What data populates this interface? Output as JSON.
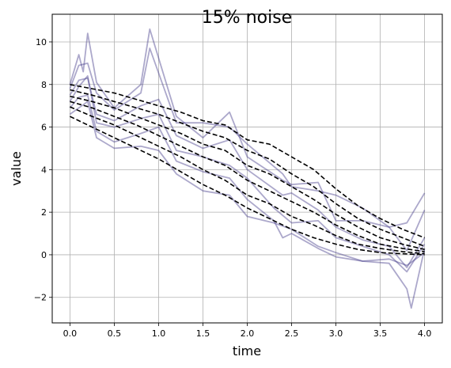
{
  "chart_data": {
    "type": "line",
    "title": "15% noise",
    "xlabel": "time",
    "ylabel": "value",
    "xlim": [
      -0.2,
      4.2
    ],
    "ylim": [
      -3.2,
      11.3
    ],
    "xticks": [
      0.0,
      0.5,
      1.0,
      1.5,
      2.0,
      2.5,
      3.0,
      3.5,
      4.0
    ],
    "xtick_labels": [
      "0.0",
      "0.5",
      "1.0",
      "1.5",
      "2.0",
      "2.5",
      "3.0",
      "3.5",
      "4.0"
    ],
    "yticks": [
      -2,
      0,
      2,
      4,
      6,
      8,
      10
    ],
    "ytick_labels": [
      "−2",
      "0",
      "2",
      "4",
      "6",
      "8",
      "10"
    ],
    "grid": true,
    "colors": {
      "noisy": "#483d8b",
      "smooth": "#000000",
      "grid": "#b0b0b0"
    },
    "noisy_series": [
      {
        "x": [
          0.0,
          0.1,
          0.15,
          0.2,
          0.3,
          0.5,
          0.8,
          0.9,
          1.2,
          1.5,
          1.8,
          2.0,
          2.4,
          2.5,
          2.8,
          3.0,
          3.3,
          3.6,
          3.8,
          4.0
        ],
        "y": [
          8.0,
          9.4,
          8.6,
          10.4,
          8.1,
          6.9,
          8.0,
          10.6,
          6.5,
          5.5,
          6.7,
          4.6,
          3.5,
          3.3,
          3.4,
          1.6,
          1.6,
          1.3,
          1.5,
          2.9
        ]
      },
      {
        "x": [
          0.0,
          0.1,
          0.2,
          0.3,
          0.5,
          0.8,
          0.9,
          1.2,
          1.5,
          1.8,
          2.0,
          2.4,
          2.5,
          2.8,
          3.0,
          3.3,
          3.6,
          3.8,
          4.0
        ],
        "y": [
          7.8,
          8.9,
          9.0,
          7.6,
          6.8,
          7.6,
          9.7,
          6.2,
          6.2,
          6.0,
          5.2,
          3.8,
          3.2,
          3.0,
          2.8,
          2.2,
          1.3,
          0.2,
          2.1
        ]
      },
      {
        "x": [
          0.0,
          0.1,
          0.2,
          0.3,
          0.5,
          0.8,
          1.0,
          1.2,
          1.5,
          1.8,
          2.0,
          2.4,
          2.5,
          2.8,
          3.0,
          3.3,
          3.6,
          3.8,
          4.0
        ],
        "y": [
          7.5,
          8.2,
          8.3,
          6.6,
          6.3,
          7.0,
          7.3,
          5.6,
          5.0,
          5.4,
          4.0,
          2.8,
          2.9,
          2.1,
          1.3,
          0.7,
          0.4,
          -0.6,
          0.8
        ]
      },
      {
        "x": [
          0.0,
          0.1,
          0.2,
          0.3,
          0.5,
          0.8,
          1.0,
          1.2,
          1.5,
          1.8,
          2.0,
          2.3,
          2.5,
          2.8,
          3.0,
          3.3,
          3.6,
          3.8,
          4.0
        ],
        "y": [
          7.2,
          7.9,
          8.4,
          6.2,
          6.0,
          6.4,
          6.6,
          4.9,
          4.6,
          4.2,
          3.6,
          2.2,
          1.5,
          1.6,
          0.8,
          0.4,
          0.0,
          -0.8,
          0.5
        ]
      },
      {
        "x": [
          0.0,
          0.1,
          0.2,
          0.3,
          0.5,
          0.8,
          1.0,
          1.2,
          1.5,
          1.8,
          2.0,
          2.3,
          2.4,
          2.5,
          2.8,
          3.0,
          3.3,
          3.6,
          3.8,
          3.85,
          4.0
        ],
        "y": [
          6.9,
          7.4,
          7.5,
          5.8,
          5.3,
          5.7,
          6.0,
          4.4,
          3.9,
          3.6,
          2.6,
          1.6,
          0.8,
          1.0,
          0.3,
          -0.1,
          -0.3,
          -0.4,
          -1.6,
          -2.5,
          0.3
        ]
      },
      {
        "x": [
          0.0,
          0.1,
          0.2,
          0.3,
          0.5,
          0.8,
          1.0,
          1.2,
          1.5,
          1.8,
          2.0,
          2.3,
          2.5,
          2.8,
          3.0,
          3.3,
          3.6,
          3.8,
          4.0
        ],
        "y": [
          6.6,
          6.9,
          7.2,
          5.5,
          5.0,
          5.1,
          4.9,
          3.8,
          3.0,
          2.8,
          1.8,
          1.5,
          1.2,
          0.4,
          0.1,
          -0.3,
          -0.2,
          -0.5,
          0.1
        ]
      }
    ],
    "smooth_series": [
      {
        "x": [
          0.0,
          0.25,
          0.5,
          0.75,
          1.0,
          1.25,
          1.5,
          1.75,
          2.0,
          2.25,
          2.5,
          2.75,
          3.0,
          3.25,
          3.5,
          3.75,
          4.0
        ],
        "y": [
          8.0,
          7.8,
          7.6,
          7.3,
          7.0,
          6.7,
          6.3,
          6.1,
          5.4,
          5.2,
          4.6,
          4.0,
          3.1,
          2.3,
          1.7,
          1.2,
          0.8
        ]
      },
      {
        "x": [
          0.0,
          0.25,
          0.5,
          0.75,
          1.0,
          1.25,
          1.5,
          1.75,
          2.0,
          2.25,
          2.5,
          2.75,
          3.0,
          3.25,
          3.5,
          3.75,
          4.0
        ],
        "y": [
          7.75,
          7.5,
          7.2,
          6.9,
          6.6,
          6.2,
          5.8,
          5.5,
          4.9,
          4.5,
          3.8,
          3.2,
          2.4,
          1.7,
          1.2,
          0.8,
          0.4
        ]
      },
      {
        "x": [
          0.0,
          0.25,
          0.5,
          0.75,
          1.0,
          1.25,
          1.5,
          1.75,
          2.0,
          2.25,
          2.5,
          2.75,
          3.0,
          3.25,
          3.5,
          3.75,
          4.0
        ],
        "y": [
          7.45,
          7.2,
          6.9,
          6.5,
          6.1,
          5.7,
          5.2,
          4.9,
          4.2,
          3.8,
          3.2,
          2.6,
          1.9,
          1.3,
          0.8,
          0.5,
          0.25
        ]
      },
      {
        "x": [
          0.0,
          0.25,
          0.5,
          0.75,
          1.0,
          1.25,
          1.5,
          1.75,
          2.0,
          2.25,
          2.5,
          2.75,
          3.0,
          3.25,
          3.5,
          3.75,
          4.0
        ],
        "y": [
          7.2,
          6.9,
          6.5,
          6.1,
          5.6,
          5.1,
          4.6,
          4.2,
          3.5,
          3.0,
          2.5,
          2.0,
          1.4,
          0.9,
          0.5,
          0.3,
          0.15
        ]
      },
      {
        "x": [
          0.0,
          0.25,
          0.5,
          0.75,
          1.0,
          1.25,
          1.5,
          1.75,
          2.0,
          2.25,
          2.5,
          2.75,
          3.0,
          3.25,
          3.5,
          3.75,
          4.0
        ],
        "y": [
          6.95,
          6.5,
          6.1,
          5.6,
          5.1,
          4.6,
          4.0,
          3.5,
          2.8,
          2.4,
          1.8,
          1.4,
          0.9,
          0.5,
          0.3,
          0.15,
          0.05
        ]
      },
      {
        "x": [
          0.0,
          0.25,
          0.5,
          0.75,
          1.0,
          1.25,
          1.5,
          1.75,
          2.0,
          2.25,
          2.5,
          2.75,
          3.0,
          3.25,
          3.5,
          3.75,
          4.0
        ],
        "y": [
          6.5,
          6.0,
          5.5,
          5.0,
          4.5,
          3.9,
          3.3,
          2.8,
          2.2,
          1.7,
          1.2,
          0.8,
          0.5,
          0.25,
          0.1,
          0.05,
          0.0
        ]
      }
    ]
  }
}
